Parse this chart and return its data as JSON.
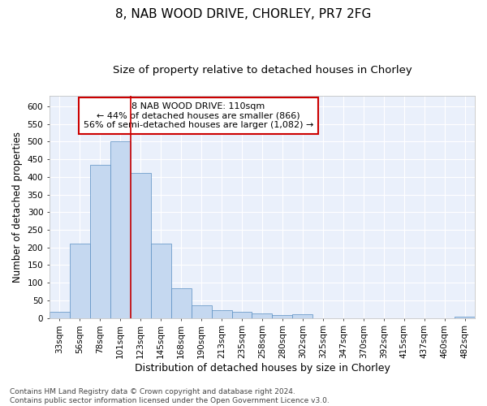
{
  "title": "8, NAB WOOD DRIVE, CHORLEY, PR7 2FG",
  "subtitle": "Size of property relative to detached houses in Chorley",
  "xlabel": "Distribution of detached houses by size in Chorley",
  "ylabel": "Number of detached properties",
  "footer_line1": "Contains HM Land Registry data © Crown copyright and database right 2024.",
  "footer_line2": "Contains public sector information licensed under the Open Government Licence v3.0.",
  "annotation_line1": "8 NAB WOOD DRIVE: 110sqm",
  "annotation_line2": "← 44% of detached houses are smaller (866)",
  "annotation_line3": "56% of semi-detached houses are larger (1,082) →",
  "bar_color": "#c5d8f0",
  "bar_edge_color": "#5a8fc2",
  "red_line_color": "#cc0000",
  "background_color": "#ffffff",
  "plot_bg_color": "#eaf0fb",
  "grid_color": "#ffffff",
  "annotation_box_color": "#ffffff",
  "annotation_box_edge": "#cc0000",
  "x_labels": [
    "33sqm",
    "56sqm",
    "78sqm",
    "101sqm",
    "123sqm",
    "145sqm",
    "168sqm",
    "190sqm",
    "213sqm",
    "235sqm",
    "258sqm",
    "280sqm",
    "302sqm",
    "325sqm",
    "347sqm",
    "370sqm",
    "392sqm",
    "415sqm",
    "437sqm",
    "460sqm",
    "482sqm"
  ],
  "bar_values": [
    18,
    210,
    435,
    500,
    410,
    210,
    85,
    35,
    22,
    18,
    12,
    8,
    10,
    0,
    0,
    0,
    0,
    0,
    0,
    0,
    5
  ],
  "red_line_x": 3.5,
  "ylim": [
    0,
    630
  ],
  "yticks": [
    0,
    50,
    100,
    150,
    200,
    250,
    300,
    350,
    400,
    450,
    500,
    550,
    600
  ],
  "title_fontsize": 11,
  "subtitle_fontsize": 9.5,
  "xlabel_fontsize": 9,
  "ylabel_fontsize": 8.5,
  "tick_fontsize": 7.5,
  "annotation_fontsize": 8,
  "footer_fontsize": 6.5
}
